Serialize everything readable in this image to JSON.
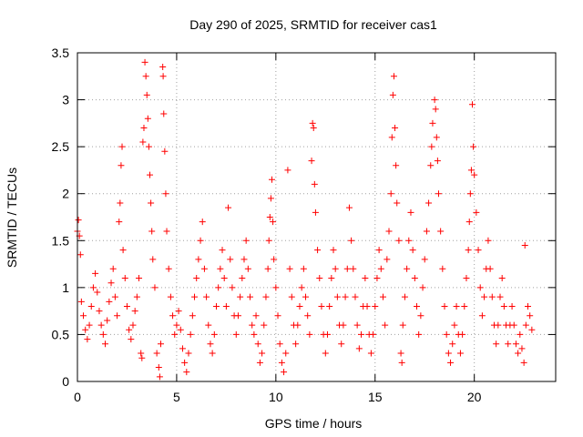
{
  "chart_data": {
    "type": "scatter",
    "title": "Day 290 of 2025, SRMTID for receiver cas1",
    "xlabel": "GPS time / hours",
    "ylabel": "SRMTID / TECUs",
    "xlim": [
      0,
      24.1
    ],
    "ylim": [
      0,
      3.5
    ],
    "xticks": [
      0,
      5,
      10,
      15,
      20
    ],
    "xtick_labels": [
      "0",
      "5",
      "10",
      "15",
      "20"
    ],
    "yticks": [
      0,
      0.5,
      1,
      1.5,
      2,
      2.5,
      3,
      3.5
    ],
    "ytick_labels": [
      "0",
      "0.5",
      "1",
      "1.5",
      "2",
      "2.5",
      "3",
      "3.5"
    ],
    "grid": true,
    "marker": "+",
    "color": "#ff0000",
    "series": [
      {
        "name": "cas1",
        "points": [
          [
            0.0,
            1.6
          ],
          [
            0.05,
            1.72
          ],
          [
            0.1,
            1.55
          ],
          [
            0.15,
            1.35
          ],
          [
            0.2,
            0.85
          ],
          [
            0.3,
            0.7
          ],
          [
            0.4,
            0.55
          ],
          [
            0.5,
            0.45
          ],
          [
            0.6,
            0.6
          ],
          [
            0.7,
            0.8
          ],
          [
            0.8,
            1.0
          ],
          [
            0.9,
            1.15
          ],
          [
            1.0,
            0.95
          ],
          [
            1.1,
            0.75
          ],
          [
            1.2,
            0.6
          ],
          [
            1.3,
            0.5
          ],
          [
            1.4,
            0.4
          ],
          [
            1.5,
            0.65
          ],
          [
            1.6,
            0.85
          ],
          [
            1.7,
            1.05
          ],
          [
            1.8,
            1.2
          ],
          [
            1.9,
            0.9
          ],
          [
            2.0,
            0.7
          ],
          [
            2.1,
            1.7
          ],
          [
            2.15,
            1.9
          ],
          [
            2.2,
            2.3
          ],
          [
            2.25,
            2.5
          ],
          [
            2.3,
            1.4
          ],
          [
            2.4,
            1.1
          ],
          [
            2.5,
            0.8
          ],
          [
            2.6,
            0.55
          ],
          [
            2.7,
            0.45
          ],
          [
            2.8,
            0.6
          ],
          [
            2.9,
            0.75
          ],
          [
            3.0,
            0.9
          ],
          [
            3.1,
            1.1
          ],
          [
            3.2,
            0.3
          ],
          [
            3.25,
            0.25
          ],
          [
            3.3,
            2.55
          ],
          [
            3.35,
            2.7
          ],
          [
            3.4,
            3.4
          ],
          [
            3.45,
            3.25
          ],
          [
            3.5,
            3.05
          ],
          [
            3.55,
            2.8
          ],
          [
            3.6,
            2.5
          ],
          [
            3.65,
            2.2
          ],
          [
            3.7,
            1.9
          ],
          [
            3.75,
            1.6
          ],
          [
            3.8,
            1.3
          ],
          [
            3.9,
            1.0
          ],
          [
            4.0,
            0.3
          ],
          [
            4.1,
            0.15
          ],
          [
            4.15,
            0.05
          ],
          [
            4.2,
            0.4
          ],
          [
            4.3,
            3.35
          ],
          [
            4.32,
            3.25
          ],
          [
            4.35,
            2.85
          ],
          [
            4.4,
            2.45
          ],
          [
            4.45,
            2.0
          ],
          [
            4.5,
            1.6
          ],
          [
            4.6,
            1.2
          ],
          [
            4.7,
            0.9
          ],
          [
            4.8,
            0.7
          ],
          [
            4.9,
            0.5
          ],
          [
            5.0,
            0.6
          ],
          [
            5.1,
            0.75
          ],
          [
            5.2,
            0.55
          ],
          [
            5.3,
            0.35
          ],
          [
            5.4,
            0.2
          ],
          [
            5.5,
            0.1
          ],
          [
            5.6,
            0.3
          ],
          [
            5.7,
            0.5
          ],
          [
            5.8,
            0.7
          ],
          [
            5.9,
            0.9
          ],
          [
            6.0,
            1.1
          ],
          [
            6.1,
            1.3
          ],
          [
            6.2,
            1.5
          ],
          [
            6.3,
            1.7
          ],
          [
            6.4,
            1.2
          ],
          [
            6.5,
            0.9
          ],
          [
            6.6,
            0.6
          ],
          [
            6.7,
            0.4
          ],
          [
            6.8,
            0.3
          ],
          [
            6.9,
            0.5
          ],
          [
            7.0,
            0.8
          ],
          [
            7.1,
            1.0
          ],
          [
            7.2,
            1.2
          ],
          [
            7.3,
            1.4
          ],
          [
            7.4,
            1.1
          ],
          [
            7.5,
            0.8
          ],
          [
            7.6,
            1.85
          ],
          [
            7.7,
            1.3
          ],
          [
            7.8,
            1.0
          ],
          [
            7.9,
            0.7
          ],
          [
            8.0,
            0.5
          ],
          [
            8.1,
            0.7
          ],
          [
            8.2,
            0.9
          ],
          [
            8.3,
            1.1
          ],
          [
            8.4,
            1.3
          ],
          [
            8.5,
            1.5
          ],
          [
            8.6,
            1.2
          ],
          [
            8.7,
            0.9
          ],
          [
            8.8,
            0.6
          ],
          [
            8.9,
            0.5
          ],
          [
            9.0,
            0.7
          ],
          [
            9.1,
            0.4
          ],
          [
            9.2,
            0.2
          ],
          [
            9.3,
            0.3
          ],
          [
            9.4,
            0.6
          ],
          [
            9.5,
            0.9
          ],
          [
            9.6,
            1.2
          ],
          [
            9.65,
            1.5
          ],
          [
            9.7,
            1.75
          ],
          [
            9.75,
            1.95
          ],
          [
            9.8,
            2.15
          ],
          [
            9.85,
            1.7
          ],
          [
            9.9,
            1.3
          ],
          [
            10.0,
            1.0
          ],
          [
            10.1,
            0.7
          ],
          [
            10.2,
            0.4
          ],
          [
            10.3,
            0.2
          ],
          [
            10.4,
            0.1
          ],
          [
            10.5,
            0.3
          ],
          [
            10.6,
            2.25
          ],
          [
            10.7,
            1.2
          ],
          [
            10.8,
            0.9
          ],
          [
            10.9,
            0.6
          ],
          [
            11.0,
            0.4
          ],
          [
            11.1,
            0.6
          ],
          [
            11.2,
            0.8
          ],
          [
            11.3,
            1.0
          ],
          [
            11.4,
            1.2
          ],
          [
            11.5,
            0.9
          ],
          [
            11.6,
            0.7
          ],
          [
            11.7,
            0.5
          ],
          [
            11.8,
            2.35
          ],
          [
            11.85,
            2.75
          ],
          [
            11.9,
            2.7
          ],
          [
            11.95,
            2.1
          ],
          [
            12.0,
            1.8
          ],
          [
            12.1,
            1.4
          ],
          [
            12.2,
            1.1
          ],
          [
            12.3,
            0.8
          ],
          [
            12.4,
            0.5
          ],
          [
            12.5,
            0.3
          ],
          [
            12.6,
            0.5
          ],
          [
            12.7,
            0.8
          ],
          [
            12.8,
            1.1
          ],
          [
            12.9,
            1.4
          ],
          [
            13.0,
            1.2
          ],
          [
            13.1,
            0.9
          ],
          [
            13.2,
            0.6
          ],
          [
            13.3,
            0.4
          ],
          [
            13.4,
            0.6
          ],
          [
            13.5,
            0.9
          ],
          [
            13.6,
            1.2
          ],
          [
            13.7,
            1.85
          ],
          [
            13.8,
            1.5
          ],
          [
            13.9,
            1.2
          ],
          [
            14.0,
            0.9
          ],
          [
            14.1,
            0.6
          ],
          [
            14.2,
            0.35
          ],
          [
            14.3,
            0.5
          ],
          [
            14.4,
            0.8
          ],
          [
            14.5,
            1.1
          ],
          [
            14.6,
            0.8
          ],
          [
            14.7,
            0.5
          ],
          [
            14.8,
            0.3
          ],
          [
            14.9,
            0.5
          ],
          [
            15.0,
            0.8
          ],
          [
            15.1,
            1.1
          ],
          [
            15.2,
            1.4
          ],
          [
            15.3,
            1.2
          ],
          [
            15.4,
            0.9
          ],
          [
            15.5,
            0.6
          ],
          [
            15.6,
            1.3
          ],
          [
            15.7,
            1.6
          ],
          [
            15.8,
            2.0
          ],
          [
            15.85,
            2.6
          ],
          [
            15.9,
            3.05
          ],
          [
            15.95,
            3.25
          ],
          [
            16.0,
            2.7
          ],
          [
            16.05,
            2.3
          ],
          [
            16.1,
            1.9
          ],
          [
            16.2,
            1.5
          ],
          [
            16.3,
            0.3
          ],
          [
            16.35,
            0.2
          ],
          [
            16.4,
            0.6
          ],
          [
            16.5,
            0.9
          ],
          [
            16.6,
            1.2
          ],
          [
            16.7,
            1.5
          ],
          [
            16.8,
            1.8
          ],
          [
            16.9,
            1.4
          ],
          [
            17.0,
            1.1
          ],
          [
            17.1,
            0.8
          ],
          [
            17.2,
            0.5
          ],
          [
            17.3,
            0.7
          ],
          [
            17.4,
            1.0
          ],
          [
            17.5,
            1.3
          ],
          [
            17.6,
            1.6
          ],
          [
            17.7,
            1.9
          ],
          [
            17.8,
            2.3
          ],
          [
            17.85,
            2.5
          ],
          [
            17.9,
            2.75
          ],
          [
            18.0,
            3.0
          ],
          [
            18.05,
            2.9
          ],
          [
            18.1,
            2.6
          ],
          [
            18.15,
            2.35
          ],
          [
            18.2,
            2.0
          ],
          [
            18.3,
            1.6
          ],
          [
            18.4,
            1.2
          ],
          [
            18.5,
            0.8
          ],
          [
            18.6,
            0.5
          ],
          [
            18.7,
            0.3
          ],
          [
            18.8,
            0.2
          ],
          [
            18.9,
            0.4
          ],
          [
            19.0,
            0.6
          ],
          [
            19.1,
            0.8
          ],
          [
            19.2,
            0.5
          ],
          [
            19.3,
            0.3
          ],
          [
            19.4,
            0.5
          ],
          [
            19.5,
            0.8
          ],
          [
            19.6,
            1.1
          ],
          [
            19.7,
            1.4
          ],
          [
            19.75,
            1.7
          ],
          [
            19.8,
            2.0
          ],
          [
            19.85,
            2.25
          ],
          [
            19.9,
            2.95
          ],
          [
            19.95,
            2.5
          ],
          [
            20.0,
            2.2
          ],
          [
            20.1,
            1.8
          ],
          [
            20.2,
            1.4
          ],
          [
            20.3,
            1.0
          ],
          [
            20.4,
            0.7
          ],
          [
            20.5,
            0.9
          ],
          [
            20.6,
            1.2
          ],
          [
            20.7,
            1.5
          ],
          [
            20.8,
            1.2
          ],
          [
            20.9,
            0.9
          ],
          [
            21.0,
            0.6
          ],
          [
            21.1,
            0.4
          ],
          [
            21.2,
            0.6
          ],
          [
            21.3,
            0.9
          ],
          [
            21.4,
            1.1
          ],
          [
            21.5,
            0.8
          ],
          [
            21.6,
            0.6
          ],
          [
            21.7,
            0.4
          ],
          [
            21.8,
            0.6
          ],
          [
            21.9,
            0.8
          ],
          [
            22.0,
            0.6
          ],
          [
            22.1,
            0.4
          ],
          [
            22.2,
            0.3
          ],
          [
            22.3,
            0.5
          ],
          [
            22.4,
            0.35
          ],
          [
            22.5,
            0.2
          ],
          [
            22.55,
            1.45
          ],
          [
            22.6,
            0.6
          ],
          [
            22.7,
            0.8
          ],
          [
            22.8,
            0.7
          ],
          [
            22.9,
            0.55
          ]
        ]
      }
    ]
  }
}
